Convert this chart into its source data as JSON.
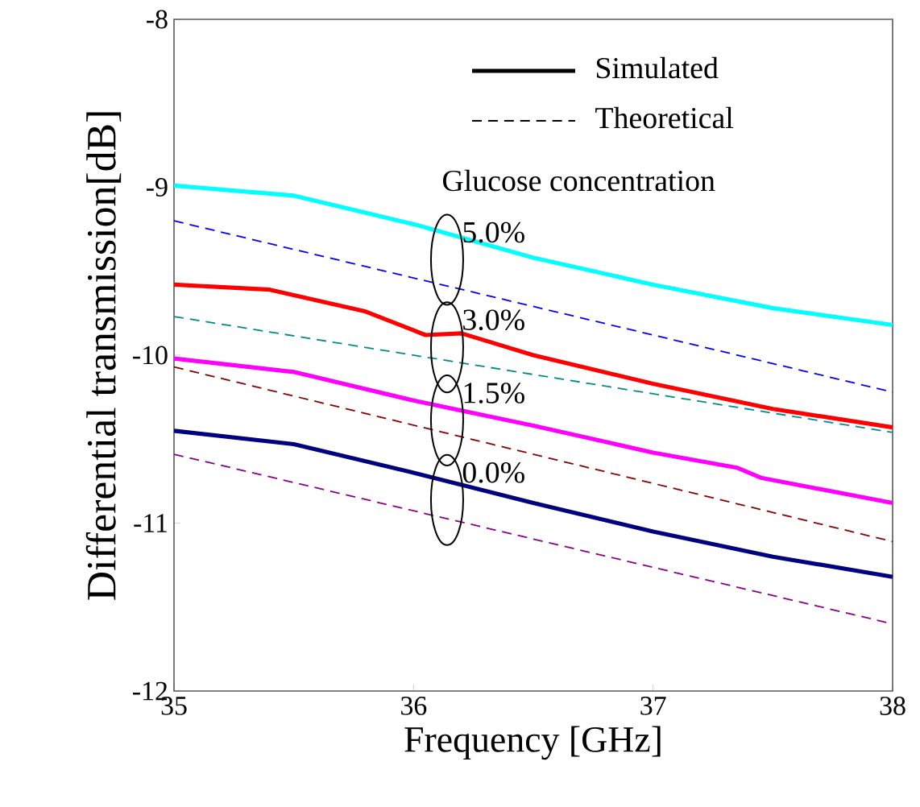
{
  "chart_data": {
    "type": "line",
    "xlabel": "Frequency [GHz]",
    "ylabel": "Differential transmission[dB]",
    "xlim": [
      35,
      38
    ],
    "ylim": [
      -12,
      -8
    ],
    "xticks": [
      35,
      36,
      37,
      38
    ],
    "yticks": [
      -12,
      -11,
      -10,
      -9,
      -8
    ],
    "grid": false,
    "marker": "none",
    "series": [
      {
        "color": "#00ffff",
        "line_style": "solid",
        "x": [
          35,
          35.5,
          36,
          36.5,
          37,
          37.5,
          38
        ],
        "values": [
          -8.99,
          -9.05,
          -9.22,
          -9.42,
          -9.58,
          -9.72,
          -9.82
        ]
      },
      {
        "color": "#0000ff",
        "line_style": "dashed",
        "x": [
          35,
          38
        ],
        "values": [
          -9.2,
          -10.22
        ]
      },
      {
        "color": "#ff0000",
        "line_style": "solid",
        "x": [
          35,
          35.4,
          35.8,
          36.05,
          36.2,
          36.5,
          37,
          37.5,
          38
        ],
        "values": [
          -9.58,
          -9.61,
          -9.74,
          -9.88,
          -9.87,
          -10.0,
          -10.17,
          -10.32,
          -10.43
        ]
      },
      {
        "color": "#008b8b",
        "line_style": "dashed",
        "x": [
          35,
          38
        ],
        "values": [
          -9.77,
          -10.46
        ]
      },
      {
        "color": "#ff00ff",
        "line_style": "solid",
        "x": [
          35,
          35.5,
          36,
          36.5,
          37,
          37.35,
          37.45,
          38
        ],
        "values": [
          -10.02,
          -10.1,
          -10.27,
          -10.42,
          -10.58,
          -10.67,
          -10.73,
          -10.88
        ]
      },
      {
        "color": "#8b0000",
        "line_style": "dashed",
        "x": [
          35,
          38
        ],
        "values": [
          -10.07,
          -11.11
        ]
      },
      {
        "color": "#000080",
        "line_style": "solid",
        "x": [
          35,
          35.5,
          36,
          36.5,
          37,
          37.5,
          38
        ],
        "values": [
          -10.45,
          -10.53,
          -10.7,
          -10.88,
          -11.05,
          -11.2,
          -11.32
        ]
      },
      {
        "color": "#8b008b",
        "line_style": "dashed",
        "x": [
          35,
          38
        ],
        "values": [
          -10.59,
          -11.6
        ]
      }
    ],
    "annotations": [
      "Simulated",
      "Theoretical",
      "Glucose concentration",
      "5.0%",
      "3.0%",
      "1.5%",
      "0.0%"
    ]
  }
}
